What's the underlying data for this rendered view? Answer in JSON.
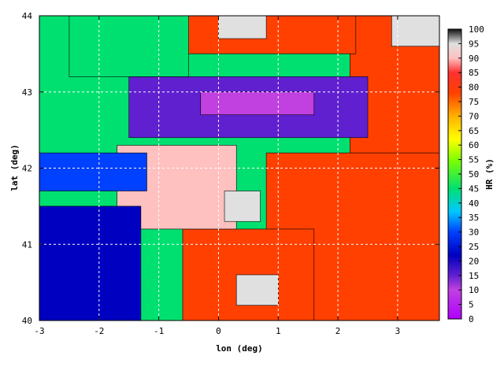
{
  "chart_data": {
    "type": "heatmap",
    "title": "",
    "xlabel": "lon (deg)",
    "ylabel": "lat (deg)",
    "colorbar_label": "HR (%)",
    "xlim": [
      -3,
      3.7
    ],
    "ylim": [
      40,
      44
    ],
    "x_ticks": [
      -3,
      -2,
      -1,
      0,
      1,
      2,
      3
    ],
    "y_ticks": [
      40,
      41,
      42,
      43,
      44
    ],
    "colorbar_range": [
      0,
      100
    ],
    "colorbar_ticks": [
      0,
      5,
      10,
      15,
      20,
      25,
      30,
      35,
      40,
      45,
      50,
      55,
      60,
      65,
      70,
      75,
      80,
      85,
      90,
      95,
      100
    ],
    "grid": true,
    "contours": true,
    "colormap": [
      {
        "value": 0,
        "color": "#b000ff"
      },
      {
        "value": 10,
        "color": "#c040e0"
      },
      {
        "value": 15,
        "color": "#6020d0"
      },
      {
        "value": 22,
        "color": "#0000c0"
      },
      {
        "value": 30,
        "color": "#0040ff"
      },
      {
        "value": 37,
        "color": "#00c8ff"
      },
      {
        "value": 45,
        "color": "#00e070"
      },
      {
        "value": 55,
        "color": "#80ff00"
      },
      {
        "value": 62,
        "color": "#ffff00"
      },
      {
        "value": 70,
        "color": "#ffb000"
      },
      {
        "value": 78,
        "color": "#ff4000"
      },
      {
        "value": 85,
        "color": "#ff3030"
      },
      {
        "value": 90,
        "color": "#ffc0c0"
      },
      {
        "value": 95,
        "color": "#e0e0e0"
      },
      {
        "value": 100,
        "color": "#101010"
      }
    ],
    "regions": [
      {
        "lon": [
          -3,
          3.7
        ],
        "lat": [
          40,
          44
        ],
        "value": 52
      },
      {
        "lon": [
          0.8,
          3.7
        ],
        "lat": [
          40,
          42.2
        ],
        "value": 78
      },
      {
        "lon": [
          2.2,
          3.7
        ],
        "lat": [
          42.2,
          44
        ],
        "value": 80
      },
      {
        "lon": [
          -0.6,
          2.3
        ],
        "lat": [
          43.5,
          44
        ],
        "value": 82
      },
      {
        "lon": [
          -0.6,
          1.6
        ],
        "lat": [
          40,
          41.2
        ],
        "value": 80
      },
      {
        "lon": [
          -1.7,
          0.3
        ],
        "lat": [
          41.2,
          42.3
        ],
        "value": 90
      },
      {
        "lon": [
          -3,
          -1.3
        ],
        "lat": [
          40,
          41.5
        ],
        "value": 28
      },
      {
        "lon": [
          -3,
          -1.2
        ],
        "lat": [
          41.7,
          42.2
        ],
        "value": 30
      },
      {
        "lon": [
          -1.5,
          2.5
        ],
        "lat": [
          42.4,
          43.2
        ],
        "value": 20
      },
      {
        "lon": [
          -0.3,
          1.6
        ],
        "lat": [
          42.7,
          43.0
        ],
        "value": 12
      },
      {
        "lon": [
          -2.5,
          -0.5
        ],
        "lat": [
          43.2,
          44
        ],
        "value": 50
      },
      {
        "lon": [
          0.3,
          1.0
        ],
        "lat": [
          40.2,
          40.6
        ],
        "value": 96
      },
      {
        "lon": [
          0.1,
          0.7
        ],
        "lat": [
          41.3,
          41.7
        ],
        "value": 97
      },
      {
        "lon": [
          0.0,
          0.8
        ],
        "lat": [
          43.7,
          44
        ],
        "value": 97
      },
      {
        "lon": [
          2.9,
          3.7
        ],
        "lat": [
          43.6,
          44
        ],
        "value": 98
      }
    ]
  }
}
